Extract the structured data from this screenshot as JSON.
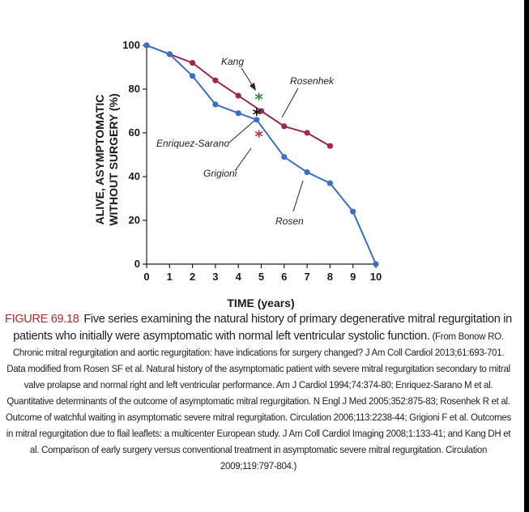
{
  "chart_data": {
    "type": "line",
    "xlabel": "TIME (years)",
    "ylabel_line1": "ALIVE, ASYMPTOMATIC",
    "ylabel_line2": "WITHOUT SURGERY (%)",
    "xlim": [
      0,
      10
    ],
    "ylim": [
      0,
      100
    ],
    "x_ticks": [
      "0",
      "1",
      "2",
      "3",
      "4",
      "5",
      "6",
      "7",
      "8",
      "9",
      "10"
    ],
    "y_ticks": [
      "0",
      "20",
      "40",
      "60",
      "80",
      "100"
    ],
    "grid": false,
    "series": [
      {
        "name": "Rosenhek",
        "color": "#a0284a",
        "x": [
          0,
          1,
          2,
          3,
          4,
          5,
          6,
          7,
          8
        ],
        "y": [
          100,
          96,
          92,
          84,
          77,
          70,
          63,
          60,
          54
        ]
      },
      {
        "name": "Rosen",
        "color": "#3a6fc2",
        "x": [
          0,
          1,
          2,
          3,
          4,
          4.8,
          6,
          7,
          8,
          9,
          10
        ],
        "y": [
          100,
          96,
          86,
          73,
          69,
          66,
          49,
          42,
          37,
          24,
          0
        ]
      }
    ],
    "point_markers": [
      {
        "name": "Kang",
        "x": 4.9,
        "y": 75,
        "color": "#2e8b3e"
      },
      {
        "name": "Enriquez-Sarano",
        "x": 4.8,
        "y": 68,
        "color": "#111111"
      },
      {
        "name": "Grigioni",
        "x": 4.9,
        "y": 58,
        "color": "#c0304f"
      }
    ],
    "annotations": [
      "Kang",
      "Rosenhek",
      "Enriquez-Sarano",
      "Grigioni",
      "Rosen"
    ]
  },
  "caption": {
    "label": "FIGURE 69.18",
    "main": "Five series examining the natural history of primary degenerative mitral regurgitation in patients who initially were asymptomatic with normal left ventricular systolic function.",
    "source": "(From Bonow RO. Chronic mitral regurgitation and aortic regurgitation: have indications for surgery changed? J Am Coll Cardiol 2013;61:693-701. Data modified from Rosen SF et al. Natural history of the asymptomatic patient with severe mitral regurgitation secondary to mitral valve prolapse and normal right and left ventricular performance. Am J Cardiol 1994;74:374-80; Enriquez-Sarano M et al. Quantitative determinants of the outcome of asymptomatic mitral regurgitation. N Engl J Med 2005;352:875-83; Rosenhek R et al. Outcome of watchful waiting in asymptomatic severe mitral regurgitation. Circulation 2006;113:2238-44; Grigioni F et al. Outcomes in mitral regurgitation due to flail leaflets: a multicenter European study. J Am Coll Cardiol Imaging 2008;1:133-41; and Kang DH et al. Comparison of early surgery versus conventional treatment in asymptomatic severe mitral regurgitation. Circulation 2009;119:797-804.)"
  }
}
